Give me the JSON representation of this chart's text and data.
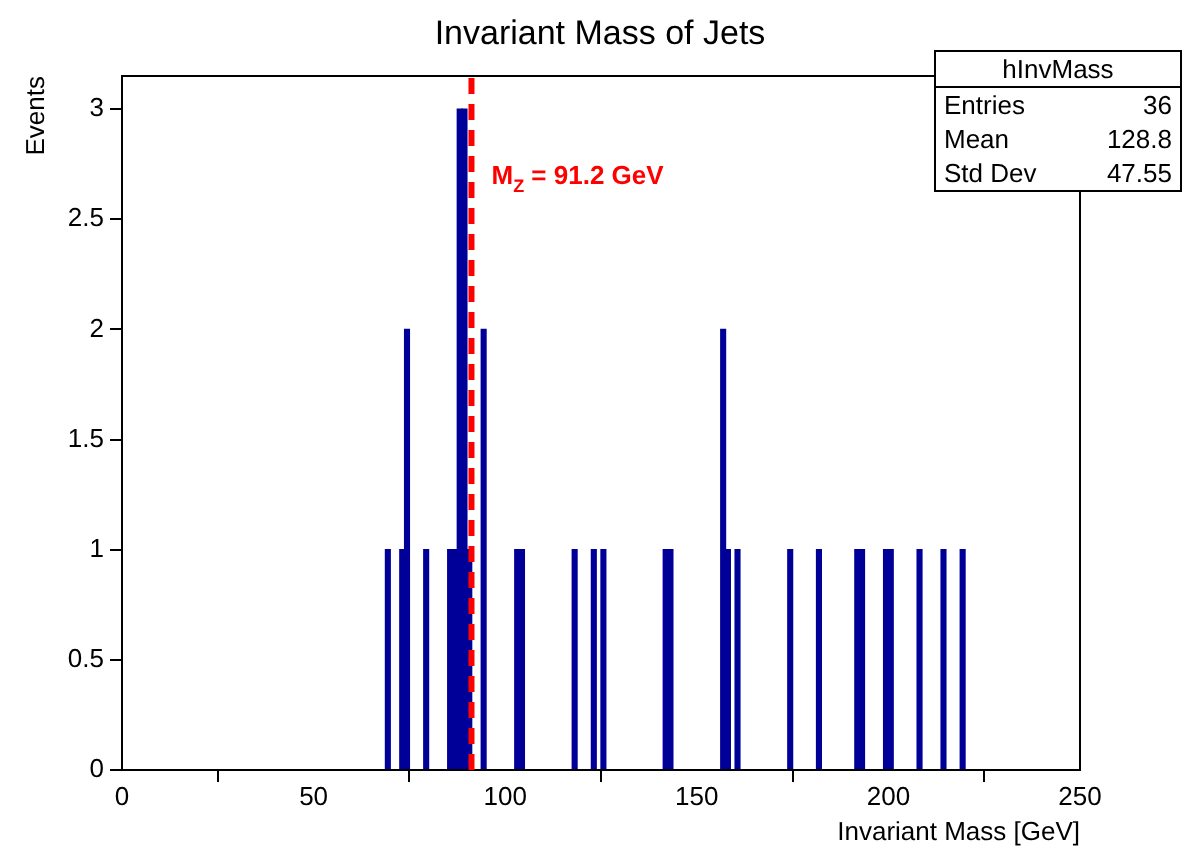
{
  "chart_data": {
    "type": "histogram",
    "title": "Invariant Mass of Jets",
    "xlabel": "Invariant Mass [GeV]",
    "ylabel": "Events",
    "bins": [
      0,
      1.25,
      2.5,
      3.75,
      5,
      6.25,
      7.5,
      8.75,
      10,
      11.25,
      12.5,
      13.75,
      15,
      16.25,
      17.5,
      18.75,
      20,
      21.25,
      22.5,
      23.75,
      25,
      26.25,
      27.5,
      28.75,
      30,
      31.25,
      32.5,
      33.75,
      35,
      36.25,
      37.5,
      38.75,
      40,
      41.25,
      42.5,
      43.75,
      45,
      46.25,
      47.5,
      48.75,
      50,
      51.25,
      52.5,
      53.75,
      55,
      56.25,
      57.5,
      58.75,
      60,
      61.25,
      62.5,
      63.75,
      65,
      66.25,
      67.5,
      68.75,
      70,
      71.25,
      72.5,
      73.75,
      75,
      76.25,
      77.5,
      78.75,
      80,
      81.25,
      82.5,
      83.75,
      85,
      86.25,
      87.5,
      88.75,
      90,
      91.25,
      92.5,
      93.75,
      95,
      96.25,
      97.5,
      98.75,
      100,
      101.25,
      102.5,
      103.75,
      105,
      106.25,
      107.5,
      108.75,
      110,
      111.25,
      112.5,
      113.75,
      115,
      116.25,
      117.5,
      118.75,
      120,
      121.25,
      122.5,
      123.75,
      125,
      126.25,
      127.5,
      128.75,
      130,
      131.25,
      132.5,
      133.75,
      135,
      136.25,
      137.5,
      138.75,
      140,
      141.25,
      142.5,
      143.75,
      145,
      146.25,
      147.5,
      148.75,
      150,
      151.25,
      152.5,
      153.75,
      155,
      156.25,
      157.5,
      158.75,
      160,
      161.25,
      162.5,
      163.75,
      165,
      166.25,
      167.5,
      168.75,
      170,
      171.25,
      172.5,
      173.75,
      175,
      176.25,
      177.5,
      178.75,
      180,
      181.25,
      182.5,
      183.75,
      185,
      186.25,
      187.5,
      188.75,
      190,
      191.25,
      192.5,
      193.75,
      195,
      196.25,
      197.5,
      198.75,
      200,
      201.25,
      202.5,
      203.75,
      205,
      206.25,
      207.5,
      208.75,
      210,
      211.25,
      212.5,
      213.75,
      215,
      216.25,
      217.5,
      218.75,
      220,
      221.25,
      222.5,
      223.75,
      225,
      226.25,
      227.5,
      228.75,
      230,
      231.25,
      232.5,
      233.75,
      235,
      236.25,
      237.5,
      238.75,
      240,
      241.25,
      242.5,
      243.75,
      245,
      246.25,
      247.5,
      248.75,
      250
    ],
    "values": [
      0,
      0,
      0,
      0,
      0,
      0,
      0,
      0,
      0,
      0,
      0,
      0,
      0,
      0,
      0,
      0,
      0,
      0,
      0,
      0,
      0,
      0,
      0,
      0,
      0,
      0,
      0,
      0,
      0,
      0,
      0,
      0,
      0,
      0,
      0,
      0,
      0,
      0,
      0,
      0,
      0,
      0,
      0,
      0,
      0,
      0,
      0,
      0,
      0,
      0,
      0,
      0,
      0,
      0,
      0,
      1,
      0,
      0,
      1,
      2,
      0,
      0,
      0,
      1,
      0,
      0,
      0,
      0,
      1,
      1,
      3,
      3,
      1,
      0,
      0,
      2,
      0,
      0,
      0,
      0,
      0,
      0,
      1,
      1,
      0,
      0,
      0,
      0,
      0,
      0,
      0,
      0,
      0,
      0,
      1,
      0,
      0,
      0,
      1,
      0,
      1,
      0,
      0,
      0,
      0,
      0,
      0,
      0,
      0,
      0,
      0,
      0,
      0,
      1,
      1,
      0,
      0,
      0,
      0,
      0,
      0,
      0,
      0,
      0,
      0,
      2,
      1,
      0,
      1,
      0,
      0,
      0,
      0,
      0,
      0,
      0,
      0,
      0,
      0,
      1,
      0,
      0,
      0,
      0,
      0,
      1,
      0,
      0,
      0,
      0,
      0,
      0,
      0,
      1,
      1,
      0,
      0,
      0,
      0,
      1,
      1,
      0,
      0,
      0,
      0,
      0,
      1,
      0,
      0,
      0,
      0,
      1,
      0,
      0,
      0,
      1,
      0,
      0,
      0,
      0,
      0,
      0,
      0,
      0,
      0,
      0,
      0,
      0,
      0,
      0,
      0,
      0,
      0,
      0,
      0,
      0,
      0,
      0,
      0,
      0
    ],
    "color": "#000099",
    "xlim": [
      0,
      250
    ],
    "xticks": [
      0,
      50,
      100,
      150,
      200,
      250
    ],
    "ylim": [
      0,
      3.15
    ],
    "yticks": [
      0,
      0.5,
      1,
      1.5,
      2,
      2.5,
      3
    ],
    "ref_lines": [
      {
        "axis": "x",
        "value": 91.2,
        "label": "M$_{Z}$ = 91.2 GeV",
        "color": "#ff0000",
        "line_style": "dashed"
      }
    ],
    "annotations": [
      "hInvMass",
      "Entries 36",
      "Mean 128.8",
      "Std Dev 47.55"
    ],
    "grid": false,
    "legend": false
  }
}
